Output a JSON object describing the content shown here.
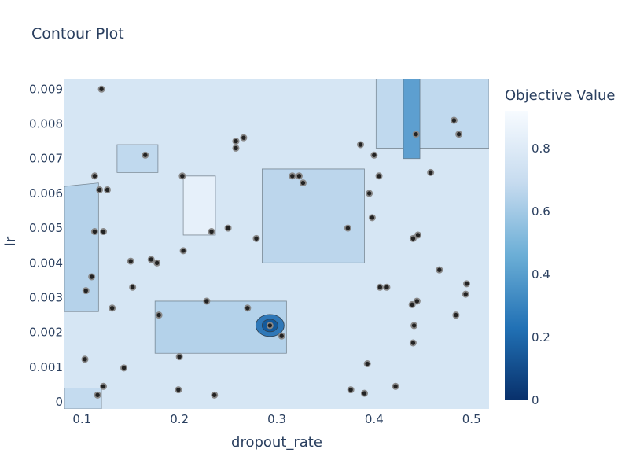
{
  "chart_data": {
    "type": "contour",
    "title": "Contour Plot",
    "xlabel": "dropout_rate",
    "ylabel": "lr",
    "colorbar_title": "Objective Value",
    "xlim": [
      0.082,
      0.518
    ],
    "ylim": [
      -0.0002,
      0.0093
    ],
    "x_ticks": [
      0.1,
      0.2,
      0.3,
      0.4,
      0.5
    ],
    "x_tick_labels": [
      "0.1",
      "0.2",
      "0.3",
      "0.4",
      "0.5"
    ],
    "y_ticks": [
      0,
      0.001,
      0.002,
      0.003,
      0.004,
      0.005,
      0.006,
      0.007,
      0.008,
      0.009
    ],
    "y_tick_labels": [
      "0",
      "0.001",
      "0.002",
      "0.003",
      "0.004",
      "0.005",
      "0.006",
      "0.007",
      "0.008",
      "0.009"
    ],
    "colorbar_range": [
      0,
      0.92
    ],
    "colorbar_ticks": [
      0,
      0.2,
      0.4,
      0.6,
      0.8
    ],
    "colorbar_tick_labels": [
      "0",
      "0.2",
      "0.4",
      "0.6",
      "0.8"
    ],
    "colorscale": [
      "#08306b",
      "#2171b5",
      "#6baed6",
      "#c6dbef",
      "#f7fbff"
    ],
    "grid": false,
    "points": {
      "x": [
        0.12,
        0.113,
        0.118,
        0.126,
        0.122,
        0.165,
        0.203,
        0.233,
        0.25,
        0.258,
        0.258,
        0.266,
        0.11,
        0.104,
        0.113,
        0.122,
        0.116,
        0.103,
        0.131,
        0.15,
        0.152,
        0.171,
        0.177,
        0.204,
        0.179,
        0.2,
        0.228,
        0.27,
        0.293,
        0.305,
        0.143,
        0.199,
        0.236,
        0.279,
        0.316,
        0.323,
        0.327,
        0.386,
        0.373,
        0.395,
        0.398,
        0.4,
        0.405,
        0.376,
        0.39,
        0.393,
        0.422,
        0.406,
        0.443,
        0.458,
        0.482,
        0.487,
        0.44,
        0.445,
        0.467,
        0.495,
        0.494,
        0.484,
        0.413,
        0.439,
        0.444,
        0.441,
        0.44
      ],
      "y": [
        0.009,
        0.0065,
        0.0061,
        0.0061,
        0.0049,
        0.0071,
        0.0065,
        0.0049,
        0.005,
        0.0075,
        0.0073,
        0.0076,
        0.0036,
        0.0032,
        0.0049,
        0.00045,
        0.0002,
        0.00123,
        0.0027,
        0.00405,
        0.0033,
        0.0041,
        0.004,
        0.00435,
        0.0025,
        0.0013,
        0.0029,
        0.0027,
        0.0022,
        0.0019,
        0.00098,
        0.00035,
        0.0002,
        0.0047,
        0.0065,
        0.0065,
        0.0063,
        0.0074,
        0.005,
        0.006,
        0.0053,
        0.0071,
        0.0065,
        0.00035,
        0.00025,
        0.0011,
        0.00045,
        0.0033,
        0.0077,
        0.0066,
        0.0081,
        0.0077,
        0.0047,
        0.0048,
        0.0038,
        0.0034,
        0.0031,
        0.0025,
        0.0033,
        0.0028,
        0.0029,
        0.0022,
        0.0017
      ]
    }
  }
}
